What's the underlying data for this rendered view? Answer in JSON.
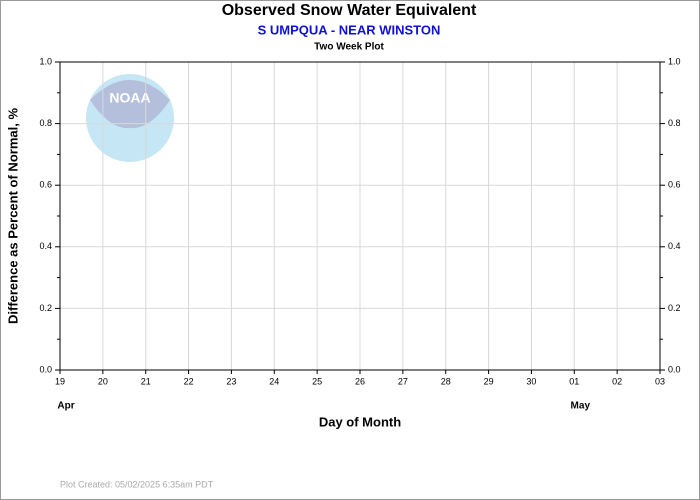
{
  "chart_data": {
    "type": "line",
    "title": "Observed Snow Water Equivalent",
    "subtitle": "S UMPQUA - NEAR WINSTON",
    "subsubtitle": "Two Week Plot",
    "ylabel": "Difference as Percent of Normal, %",
    "xlabel": "Day of Month",
    "footer": "Plot Created: 05/02/2025 6:35am PDT",
    "logo_text": "NOAA",
    "categories": [
      "19",
      "20",
      "21",
      "22",
      "23",
      "24",
      "25",
      "26",
      "27",
      "28",
      "29",
      "30",
      "01",
      "02",
      "03"
    ],
    "months": [
      "Apr",
      null,
      null,
      null,
      null,
      null,
      null,
      null,
      null,
      null,
      null,
      null,
      "May",
      null,
      null
    ],
    "series": [],
    "ylim": [
      0,
      1
    ],
    "yticks": [
      {
        "value": 0,
        "label": "0.0"
      },
      {
        "value": 0.2,
        "label": "0.2"
      },
      {
        "value": 0.4,
        "label": "0.4"
      },
      {
        "value": 0.6,
        "label": "0.6"
      },
      {
        "value": 0.8,
        "label": "0.8"
      },
      {
        "value": 1,
        "label": "1.0"
      }
    ],
    "y2lim": [
      0,
      1
    ],
    "y2ticks": [
      {
        "value": 0,
        "label": "0.0"
      },
      {
        "value": 0.2,
        "label": "0.2"
      },
      {
        "value": 0.4,
        "label": "0.4"
      },
      {
        "value": 0.6,
        "label": "0.6"
      },
      {
        "value": 0.8,
        "label": "0.8"
      },
      {
        "value": 1,
        "label": "1.0"
      }
    ],
    "grid": true
  }
}
